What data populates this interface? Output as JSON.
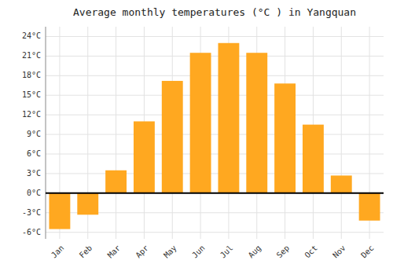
{
  "chart_data": {
    "type": "bar",
    "title": "Average monthly temperatures (°C ) in Yangquan",
    "categories": [
      "Jan",
      "Feb",
      "Mar",
      "Apr",
      "May",
      "Jun",
      "Jul",
      "Aug",
      "Sep",
      "Oct",
      "Nov",
      "Dec"
    ],
    "values": [
      -5.5,
      -3.3,
      3.5,
      11.0,
      17.2,
      21.5,
      23.0,
      21.5,
      16.8,
      10.5,
      2.7,
      -4.2
    ],
    "color": "#FFA820",
    "ylim": [
      -7,
      25.5
    ],
    "yticks": [
      {
        "value": -6,
        "label": "-6°C"
      },
      {
        "value": -3,
        "label": "-3°C"
      },
      {
        "value": 0,
        "label": "0°C"
      },
      {
        "value": 3,
        "label": "3°C"
      },
      {
        "value": 6,
        "label": "6°C"
      },
      {
        "value": 9,
        "label": "9°C"
      },
      {
        "value": 12,
        "label": "12°C"
      },
      {
        "value": 15,
        "label": "15°C"
      },
      {
        "value": 18,
        "label": "18°C"
      },
      {
        "value": 21,
        "label": "21°C"
      },
      {
        "value": 24,
        "label": "24°C"
      }
    ],
    "grid": true
  }
}
